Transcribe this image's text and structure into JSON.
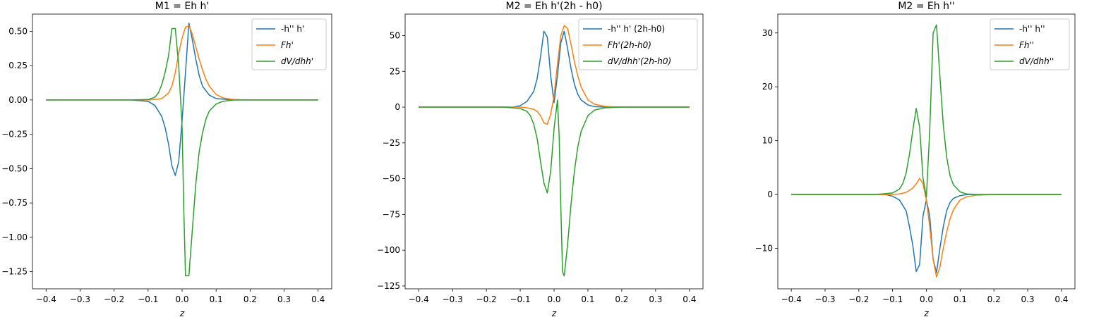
{
  "chart_data": [
    {
      "type": "line",
      "title": "M1 = Eh h'",
      "xlabel": "z",
      "ylabel": "",
      "xlim": [
        -0.44,
        0.44
      ],
      "ylim": [
        -1.375,
        0.625
      ],
      "xticks": [
        -0.4,
        -0.3,
        -0.2,
        -0.1,
        0.0,
        0.1,
        0.2,
        0.3,
        0.4
      ],
      "xticklabels": [
        "−0.4",
        "−0.3",
        "−0.2",
        "−0.1",
        "0.0",
        "0.1",
        "0.2",
        "0.3",
        "0.4"
      ],
      "yticks": [
        0.5,
        0.25,
        0.0,
        -0.25,
        -0.5,
        -0.75,
        -1.0,
        -1.25
      ],
      "yticklabels": [
        "0.50",
        "0.25",
        "0.00",
        "−0.25",
        "−0.50",
        "−0.75",
        "−1.00",
        "−1.25"
      ],
      "legend_position": "top-right",
      "series": [
        {
          "name": "-h'' h'",
          "color": "#1f77b4",
          "points": [
            [
              -0.4,
              0
            ],
            [
              -0.15,
              0
            ],
            [
              -0.1,
              -0.01
            ],
            [
              -0.08,
              -0.04
            ],
            [
              -0.06,
              -0.12
            ],
            [
              -0.05,
              -0.2
            ],
            [
              -0.04,
              -0.32
            ],
            [
              -0.03,
              -0.48
            ],
            [
              -0.02,
              -0.55
            ],
            [
              -0.01,
              -0.45
            ],
            [
              0.0,
              -0.15
            ],
            [
              0.01,
              0.2
            ],
            [
              0.02,
              0.56
            ],
            [
              0.03,
              0.44
            ],
            [
              0.04,
              0.3
            ],
            [
              0.05,
              0.18
            ],
            [
              0.06,
              0.1
            ],
            [
              0.08,
              0.035
            ],
            [
              0.1,
              0.01
            ],
            [
              0.15,
              0
            ],
            [
              0.4,
              0
            ]
          ]
        },
        {
          "name": "Fh'",
          "color": "#ff7f0e",
          "points": [
            [
              -0.4,
              0
            ],
            [
              -0.1,
              0
            ],
            [
              -0.08,
              0.003
            ],
            [
              -0.06,
              0.01
            ],
            [
              -0.04,
              0.05
            ],
            [
              -0.03,
              0.1
            ],
            [
              -0.02,
              0.2
            ],
            [
              -0.01,
              0.34
            ],
            [
              0.0,
              0.45
            ],
            [
              0.01,
              0.53
            ],
            [
              0.02,
              0.54
            ],
            [
              0.03,
              0.48
            ],
            [
              0.04,
              0.39
            ],
            [
              0.05,
              0.3
            ],
            [
              0.06,
              0.22
            ],
            [
              0.07,
              0.15
            ],
            [
              0.08,
              0.1
            ],
            [
              0.1,
              0.04
            ],
            [
              0.12,
              0.015
            ],
            [
              0.15,
              0.003
            ],
            [
              0.2,
              0
            ],
            [
              0.4,
              0
            ]
          ]
        },
        {
          "name": "dV/dhh'",
          "color": "#2ca02c",
          "points": [
            [
              -0.4,
              0
            ],
            [
              -0.15,
              0
            ],
            [
              -0.1,
              0.003
            ],
            [
              -0.08,
              0.02
            ],
            [
              -0.07,
              0.05
            ],
            [
              -0.06,
              0.11
            ],
            [
              -0.05,
              0.2
            ],
            [
              -0.04,
              0.32
            ],
            [
              -0.03,
              0.52
            ],
            [
              -0.02,
              0.52
            ],
            [
              -0.01,
              0.25
            ],
            [
              0.0,
              -0.2
            ],
            [
              0.005,
              -0.8
            ],
            [
              0.01,
              -1.28
            ],
            [
              0.02,
              -1.28
            ],
            [
              0.03,
              -0.95
            ],
            [
              0.04,
              -0.62
            ],
            [
              0.05,
              -0.38
            ],
            [
              0.06,
              -0.24
            ],
            [
              0.07,
              -0.14
            ],
            [
              0.08,
              -0.08
            ],
            [
              0.1,
              -0.03
            ],
            [
              0.12,
              -0.01
            ],
            [
              0.15,
              0
            ],
            [
              0.4,
              0
            ]
          ]
        }
      ]
    },
    {
      "type": "line",
      "title": "M2 = Eh h'(2h - h0)",
      "xlabel": "z",
      "ylabel": "",
      "xlim": [
        -0.44,
        0.44
      ],
      "ylim": [
        -127,
        65
      ],
      "xticks": [
        -0.4,
        -0.3,
        -0.2,
        -0.1,
        0.0,
        0.1,
        0.2,
        0.3,
        0.4
      ],
      "xticklabels": [
        "−0.4",
        "−0.3",
        "−0.2",
        "−0.1",
        "0.0",
        "0.1",
        "0.2",
        "0.3",
        "0.4"
      ],
      "yticks": [
        50,
        25,
        0,
        -25,
        -50,
        -75,
        -100,
        -125
      ],
      "yticklabels": [
        "50",
        "25",
        "0",
        "−25",
        "−50",
        "−75",
        "−100",
        "−125"
      ],
      "legend_position": "top-right",
      "series": [
        {
          "name": "-h'' h' (2h-h0)",
          "color": "#1f77b4",
          "points": [
            [
              -0.4,
              0
            ],
            [
              -0.12,
              0
            ],
            [
              -0.1,
              1
            ],
            [
              -0.08,
              4
            ],
            [
              -0.06,
              11
            ],
            [
              -0.05,
              20
            ],
            [
              -0.04,
              35
            ],
            [
              -0.03,
              53
            ],
            [
              -0.02,
              49
            ],
            [
              -0.01,
              22
            ],
            [
              0.0,
              3
            ],
            [
              0.01,
              22
            ],
            [
              0.02,
              45
            ],
            [
              0.03,
              53
            ],
            [
              0.04,
              41
            ],
            [
              0.05,
              27
            ],
            [
              0.06,
              16
            ],
            [
              0.07,
              9
            ],
            [
              0.08,
              5
            ],
            [
              0.1,
              1.5
            ],
            [
              0.12,
              0.3
            ],
            [
              0.15,
              0
            ],
            [
              0.4,
              0
            ]
          ]
        },
        {
          "name": "Fh'(2h-h0)",
          "color": "#ff7f0e",
          "points": [
            [
              -0.4,
              0
            ],
            [
              -0.1,
              0
            ],
            [
              -0.08,
              -0.5
            ],
            [
              -0.06,
              -1.5
            ],
            [
              -0.05,
              -3
            ],
            [
              -0.04,
              -6
            ],
            [
              -0.03,
              -11
            ],
            [
              -0.02,
              -12
            ],
            [
              -0.01,
              -5
            ],
            [
              0.0,
              8
            ],
            [
              0.01,
              30
            ],
            [
              0.02,
              50
            ],
            [
              0.03,
              57
            ],
            [
              0.04,
              55
            ],
            [
              0.05,
              44
            ],
            [
              0.06,
              32
            ],
            [
              0.07,
              22
            ],
            [
              0.08,
              14
            ],
            [
              0.1,
              5
            ],
            [
              0.12,
              2
            ],
            [
              0.15,
              0.5
            ],
            [
              0.2,
              0
            ],
            [
              0.4,
              0
            ]
          ]
        },
        {
          "name": "dV/dhh'(2h-h0)",
          "color": "#2ca02c",
          "points": [
            [
              -0.4,
              0
            ],
            [
              -0.15,
              0
            ],
            [
              -0.1,
              -1
            ],
            [
              -0.08,
              -3
            ],
            [
              -0.07,
              -6
            ],
            [
              -0.06,
              -12
            ],
            [
              -0.05,
              -22
            ],
            [
              -0.04,
              -38
            ],
            [
              -0.03,
              -53
            ],
            [
              -0.02,
              -60
            ],
            [
              -0.01,
              -45
            ],
            [
              0.0,
              -15
            ],
            [
              0.01,
              5
            ],
            [
              0.015,
              -20
            ],
            [
              0.02,
              -70
            ],
            [
              0.025,
              -115
            ],
            [
              0.03,
              -118
            ],
            [
              0.04,
              -96
            ],
            [
              0.05,
              -68
            ],
            [
              0.06,
              -45
            ],
            [
              0.07,
              -28
            ],
            [
              0.08,
              -17
            ],
            [
              0.1,
              -6
            ],
            [
              0.12,
              -2
            ],
            [
              0.15,
              -0.5
            ],
            [
              0.2,
              0
            ],
            [
              0.4,
              0
            ]
          ]
        }
      ]
    },
    {
      "type": "line",
      "title": "M2 = Eh h''",
      "xlabel": "z",
      "ylabel": "",
      "xlim": [
        -0.44,
        0.44
      ],
      "ylim": [
        -17.5,
        33.5
      ],
      "xticks": [
        -0.4,
        -0.3,
        -0.2,
        -0.1,
        0.0,
        0.1,
        0.2,
        0.3,
        0.4
      ],
      "xticklabels": [
        "−0.4",
        "−0.3",
        "−0.2",
        "−0.1",
        "0.0",
        "0.1",
        "0.2",
        "0.3",
        "0.4"
      ],
      "yticks": [
        30,
        20,
        10,
        0,
        -10
      ],
      "yticklabels": [
        "30",
        "20",
        "10",
        "0",
        "−10"
      ],
      "legend_position": "top-right",
      "series": [
        {
          "name": "-h'' h''",
          "color": "#1f77b4",
          "points": [
            [
              -0.4,
              0
            ],
            [
              -0.12,
              0
            ],
            [
              -0.1,
              -0.3
            ],
            [
              -0.08,
              -1
            ],
            [
              -0.06,
              -3
            ],
            [
              -0.05,
              -6
            ],
            [
              -0.04,
              -9.5
            ],
            [
              -0.03,
              -14.3
            ],
            [
              -0.02,
              -13
            ],
            [
              -0.01,
              -4
            ],
            [
              0.0,
              -1
            ],
            [
              0.01,
              -4
            ],
            [
              0.02,
              -12
            ],
            [
              0.03,
              -14.5
            ],
            [
              0.04,
              -10
            ],
            [
              0.05,
              -6
            ],
            [
              0.06,
              -3
            ],
            [
              0.07,
              -1.5
            ],
            [
              0.08,
              -0.7
            ],
            [
              0.1,
              -0.2
            ],
            [
              0.12,
              0
            ],
            [
              0.4,
              0
            ]
          ]
        },
        {
          "name": "Fh''",
          "color": "#ff7f0e",
          "points": [
            [
              -0.4,
              0
            ],
            [
              -0.1,
              0
            ],
            [
              -0.08,
              0.1
            ],
            [
              -0.06,
              0.4
            ],
            [
              -0.04,
              1.2
            ],
            [
              -0.03,
              2
            ],
            [
              -0.02,
              3
            ],
            [
              -0.01,
              2
            ],
            [
              0.0,
              -1
            ],
            [
              0.01,
              -6
            ],
            [
              0.02,
              -12
            ],
            [
              0.03,
              -15.3
            ],
            [
              0.04,
              -13.5
            ],
            [
              0.05,
              -10
            ],
            [
              0.06,
              -7
            ],
            [
              0.07,
              -4.5
            ],
            [
              0.08,
              -2.8
            ],
            [
              0.1,
              -1
            ],
            [
              0.12,
              -0.4
            ],
            [
              0.15,
              -0.1
            ],
            [
              0.2,
              0
            ],
            [
              0.4,
              0
            ]
          ]
        },
        {
          "name": "dV/dhh''",
          "color": "#2ca02c",
          "points": [
            [
              -0.4,
              0
            ],
            [
              -0.15,
              0
            ],
            [
              -0.1,
              0.3
            ],
            [
              -0.08,
              1
            ],
            [
              -0.07,
              2
            ],
            [
              -0.06,
              4
            ],
            [
              -0.05,
              7.5
            ],
            [
              -0.04,
              12
            ],
            [
              -0.03,
              16
            ],
            [
              -0.02,
              12.5
            ],
            [
              -0.01,
              3
            ],
            [
              0.0,
              -0.5
            ],
            [
              0.01,
              12
            ],
            [
              0.02,
              30
            ],
            [
              0.03,
              31.5
            ],
            [
              0.04,
              22
            ],
            [
              0.05,
              13
            ],
            [
              0.06,
              7
            ],
            [
              0.07,
              3.5
            ],
            [
              0.08,
              1.8
            ],
            [
              0.1,
              0.5
            ],
            [
              0.12,
              0.1
            ],
            [
              0.15,
              0
            ],
            [
              0.4,
              0
            ]
          ]
        }
      ]
    }
  ]
}
